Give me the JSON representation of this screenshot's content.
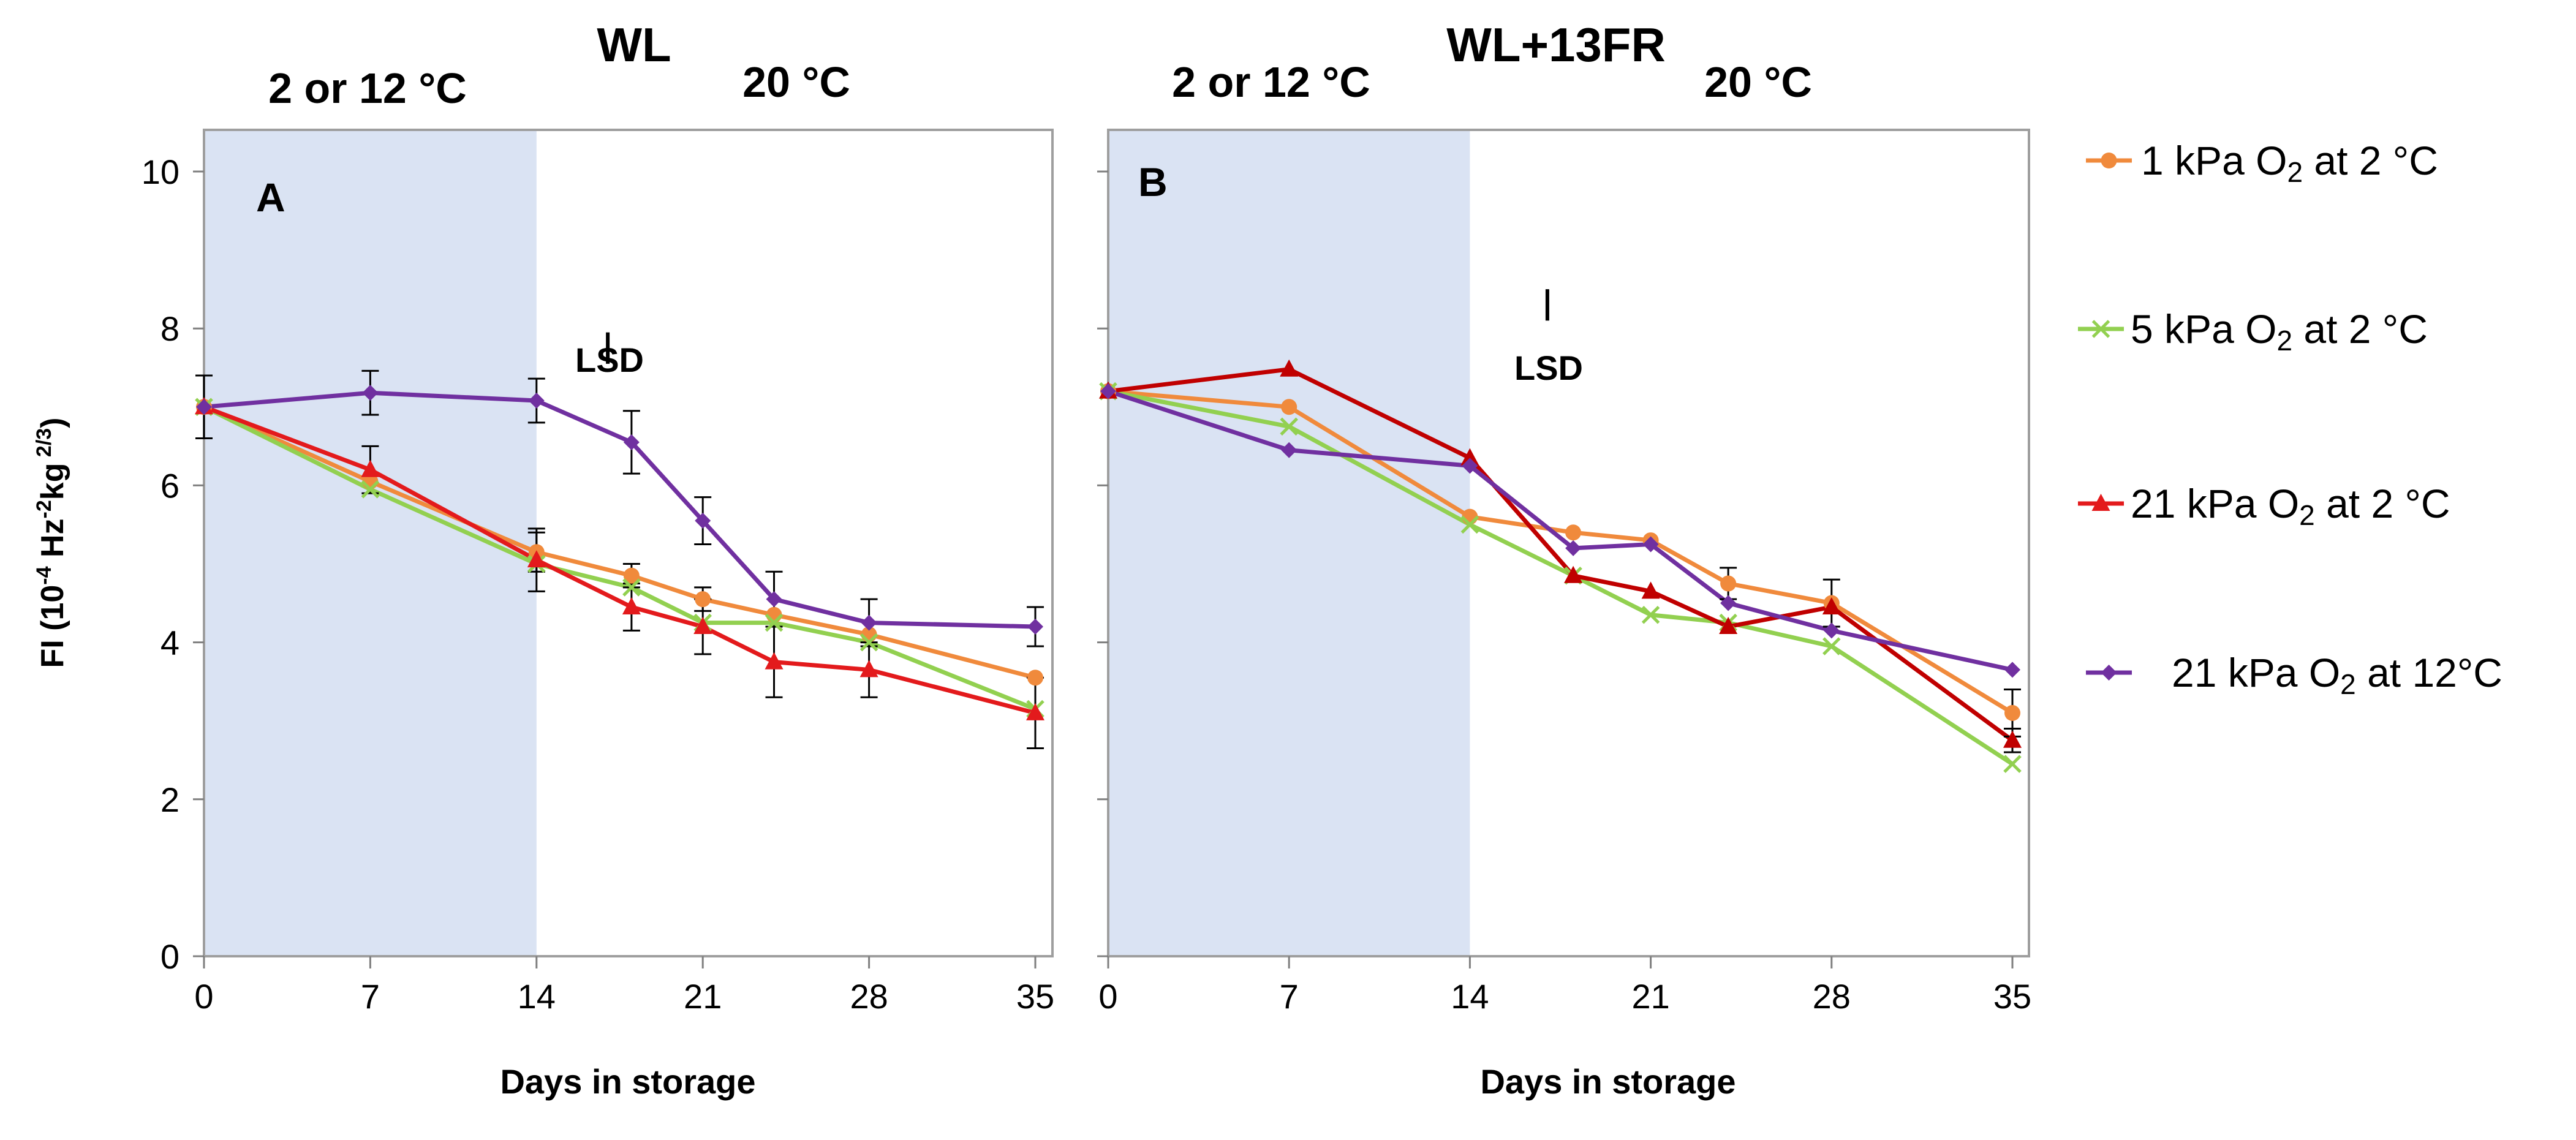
{
  "y_axis_label_main": "FI (10",
  "y_axis_label_exp1": "-4",
  "y_axis_label_mid1": " Hz",
  "y_axis_label_exp2": "-2",
  "y_axis_label_mid2": "kg",
  "y_axis_label_exp3": " 2/3",
  "y_axis_label_end": ")",
  "legend": [
    {
      "pre": "1  kPa O",
      "sub": "2",
      "post": "  at 2 °C"
    },
    {
      "pre": "5 kPa O",
      "sub": "2",
      "post": "   at 2 °C"
    },
    {
      "pre": "21 kPa O",
      "sub": "2",
      "post": "  at 2 °C"
    },
    {
      "pre": " 21 kPa O",
      "sub": "2",
      "post": " at 12°C"
    }
  ],
  "colors": {
    "orange": "#F08A3C",
    "green": "#92D050",
    "red": "#E31A1C",
    "darkred": "#C00000",
    "purple": "#7030A0",
    "shade": "#DAE3F3"
  },
  "chart_data": [
    {
      "type": "line",
      "panel": "A",
      "title": "WL",
      "temp_label_cold": "2  or 12 °C",
      "temp_label_warm": "20 °C",
      "lsd_label": "LSD",
      "xlabel": "Days in storage",
      "ylabel": "FI (10^-4 Hz^-2 kg^2/3)",
      "xlim": [
        0,
        35
      ],
      "ylim": [
        0,
        10
      ],
      "xticks": [
        0,
        7,
        14,
        21,
        28,
        35
      ],
      "yticks": [
        0,
        2,
        4,
        6,
        8,
        10
      ],
      "shaded_range": [
        0,
        14
      ],
      "lsd": {
        "x": 17,
        "y_low": 7.55,
        "y_high": 7.95
      },
      "series": [
        {
          "name": "1 kPa O2 at 2 °C",
          "color": "orange",
          "marker": "circle",
          "x": [
            0,
            7,
            14,
            18,
            21,
            24,
            28,
            35
          ],
          "y": [
            7.0,
            6.05,
            5.15,
            4.85,
            4.55,
            4.35,
            4.1,
            3.55
          ],
          "err": [
            0,
            0,
            0.25,
            0.15,
            0.15,
            0,
            0,
            0
          ]
        },
        {
          "name": "5 kPa O2 at 2 °C",
          "color": "green",
          "marker": "x",
          "x": [
            0,
            7,
            14,
            18,
            21,
            24,
            28,
            35
          ],
          "y": [
            7.0,
            5.95,
            5.0,
            4.7,
            4.25,
            4.25,
            4.0,
            3.15
          ],
          "err": [
            0,
            0,
            0,
            0,
            0,
            0,
            0,
            0
          ]
        },
        {
          "name": "21 kPa O2 at 2 °C",
          "color": "red",
          "marker": "triangle",
          "x": [
            0,
            7,
            14,
            18,
            21,
            24,
            28,
            35
          ],
          "y": [
            7.0,
            6.2,
            5.05,
            4.45,
            4.2,
            3.75,
            3.65,
            3.1
          ],
          "err": [
            0,
            0.3,
            0.4,
            0.3,
            0.35,
            0.45,
            0.35,
            0.45
          ]
        },
        {
          "name": "21 kPa O2 at 12°C",
          "color": "purple",
          "marker": "diamond",
          "x": [
            0,
            7,
            14,
            18,
            21,
            24,
            28,
            35
          ],
          "y": [
            7.0,
            7.18,
            7.08,
            6.55,
            5.55,
            4.55,
            4.25,
            4.2
          ],
          "err": [
            0.4,
            0.28,
            0.28,
            0.4,
            0.3,
            0.35,
            0.3,
            0.25
          ]
        }
      ]
    },
    {
      "type": "line",
      "panel": "B",
      "title": "WL+13FR",
      "temp_label_cold": "2  or 12 °C",
      "temp_label_warm": "20 °C",
      "lsd_label": "LSD",
      "xlabel": "Days in storage",
      "ylabel": "",
      "xlim": [
        0,
        35
      ],
      "ylim": [
        0,
        10
      ],
      "xticks": [
        0,
        7,
        14,
        21,
        28,
        35
      ],
      "yticks": [
        0,
        2,
        4,
        6,
        8,
        10
      ],
      "shaded_range": [
        0,
        14
      ],
      "lsd": {
        "x": 17,
        "y_low": 8.1,
        "y_high": 8.5
      },
      "series": [
        {
          "name": "1 kPa O2 at 2 °C",
          "color": "orange",
          "marker": "circle",
          "x": [
            0,
            7,
            14,
            18,
            21,
            24,
            28,
            35
          ],
          "y": [
            7.2,
            7.0,
            5.6,
            5.4,
            5.3,
            4.75,
            4.5,
            3.1
          ],
          "err": [
            0,
            0,
            0,
            0,
            0,
            0.2,
            0.3,
            0.3
          ]
        },
        {
          "name": "5 kPa O2 at 2 °C",
          "color": "green",
          "marker": "x",
          "x": [
            0,
            7,
            14,
            18,
            21,
            24,
            28,
            35
          ],
          "y": [
            7.2,
            6.75,
            5.5,
            4.85,
            4.35,
            4.25,
            3.95,
            2.45
          ],
          "err": [
            0,
            0,
            0,
            0,
            0,
            0,
            0,
            0
          ]
        },
        {
          "name": "21 kPa O2 at 2 °C",
          "color": "darkred",
          "marker": "triangle",
          "x": [
            0,
            7,
            14,
            18,
            21,
            24,
            28,
            35
          ],
          "y": [
            7.2,
            7.48,
            6.35,
            4.85,
            4.65,
            4.2,
            4.45,
            2.75
          ],
          "err": [
            0,
            0,
            0,
            0,
            0,
            0,
            0,
            0.15
          ]
        },
        {
          "name": "21 kPa O2 at 12°C",
          "color": "purple",
          "marker": "diamond",
          "x": [
            0,
            7,
            14,
            18,
            21,
            24,
            28,
            35
          ],
          "y": [
            7.2,
            6.45,
            6.25,
            5.2,
            5.25,
            4.5,
            4.15,
            3.65
          ],
          "err": [
            0,
            0,
            0,
            0,
            0,
            0,
            0,
            0
          ]
        }
      ]
    }
  ]
}
